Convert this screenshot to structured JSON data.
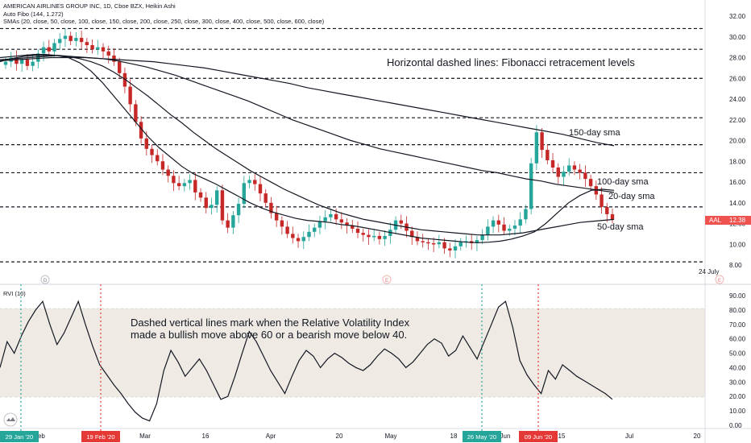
{
  "header": {
    "title_line": "AMERICAN AIRLINES GROUP INC, 1D, Cboe BZX, Heikin Ashi",
    "fib_line": "Auto Fibo (144, 1.272)",
    "sma_line": "SMAs (20, close, 50, close, 100, close, 150, close, 200, close, 250, close, 300, close, 400, close, 500, close, 600, close)",
    "rvi_label": "RVI (10)"
  },
  "ticker": {
    "symbol": "AAL",
    "price": "12.38",
    "color": "#ef5350"
  },
  "annotations": {
    "fib_note": "Horizontal dashed lines: Fibonacci retracement levels",
    "rvi_note_1": "Dashed vertical lines mark when the Relative Volatility Index",
    "rvi_note_2": "made a bullish move above 60 or a bearish move below 40.",
    "sma150": "150-day sma",
    "sma100": "100-day sma",
    "sma20": "20-day sma",
    "sma50": "50-day sma",
    "date_note": "24 July"
  },
  "event_markers": [
    "D",
    "E",
    "E"
  ],
  "x_axis": {
    "ticks": [
      "Feb",
      "Mar",
      "16",
      "Apr",
      "20",
      "May",
      "18",
      "Jun",
      "15",
      "Jul",
      "20"
    ],
    "date_badges": [
      "29 Jan '20",
      "19 Feb '20",
      "26 May '20",
      "09 Jun '20"
    ]
  },
  "colors": {
    "up": "#26a69a",
    "down": "#c62828",
    "bullish_line": "#26a69a",
    "bearish_line": "#e53935",
    "band": "#efeae4"
  },
  "chart_data": [
    {
      "type": "candlestick",
      "title": "AMERICAN AIRLINES GROUP INC, 1D, Cboe BZX, Heikin Ashi",
      "ylim": [
        7,
        33
      ],
      "yticks": [
        "8.00",
        "10.00",
        "12.00",
        "14.00",
        "16.00",
        "18.00",
        "20.00",
        "22.00",
        "24.00",
        "26.00",
        "28.00",
        "30.00",
        "32.00"
      ],
      "fib_levels": [
        8.3,
        13.6,
        16.9,
        19.6,
        22.2,
        26.0,
        28.8,
        30.8
      ],
      "closes": [
        27.6,
        28.0,
        27.4,
        27.8,
        27.2,
        27.6,
        28.4,
        29.0,
        28.6,
        29.4,
        29.8,
        30.1,
        29.6,
        29.9,
        29.5,
        29.2,
        28.8,
        29.0,
        28.6,
        28.2,
        27.6,
        26.5,
        25.2,
        23.5,
        21.8,
        20.2,
        19.2,
        18.6,
        18.0,
        17.2,
        16.6,
        15.9,
        15.6,
        15.9,
        16.2,
        15.0,
        14.5,
        13.5,
        13.8,
        15.2,
        12.3,
        11.6,
        12.8,
        13.9,
        15.9,
        16.2,
        15.8,
        14.9,
        14.0,
        13.0,
        12.3,
        11.7,
        11.0,
        10.6,
        10.3,
        10.7,
        11.2,
        11.6,
        12.2,
        12.6,
        12.9,
        12.4,
        12.1,
        11.8,
        11.5,
        11.1,
        10.9,
        10.7,
        10.8,
        10.5,
        10.8,
        11.4,
        12.3,
        12.0,
        11.3,
        10.7,
        10.3,
        10.2,
        10.1,
        10.0,
        10.2,
        9.6,
        9.4,
        9.8,
        10.2,
        10.3,
        10.1,
        10.4,
        10.9,
        11.7,
        12.3,
        11.9,
        11.3,
        11.5,
        11.8,
        12.4,
        13.4,
        17.8,
        20.8,
        19.1,
        18.1,
        17.4,
        16.5,
        17.0,
        17.6,
        17.2,
        16.9,
        16.3,
        15.6,
        14.8,
        13.6,
        12.9,
        12.4
      ],
      "sma20": [
        28.0,
        28.1,
        28.2,
        28.3,
        28.3,
        28.2,
        28.0,
        27.5,
        26.7,
        25.6,
        24.3,
        23.0,
        21.7,
        20.4,
        19.3,
        18.4,
        17.5,
        16.8,
        16.3,
        15.8,
        15.2,
        14.6,
        14.0,
        13.5,
        13.1,
        12.8,
        12.5,
        12.3,
        12.2,
        12.1,
        11.9,
        11.8,
        11.6,
        11.4,
        11.2,
        11.0,
        10.8,
        10.6,
        10.5,
        10.4,
        10.3,
        10.2,
        10.15,
        10.2,
        10.3,
        10.5,
        10.8,
        11.2,
        12.0,
        13.0,
        14.0,
        14.7,
        15.2,
        15.3,
        15.2
      ],
      "sma50": [
        27.6,
        27.9,
        28.1,
        28.2,
        28.2,
        28.2,
        28.1,
        27.9,
        27.6,
        27.2,
        26.6,
        25.9,
        25.1,
        24.3,
        23.4,
        22.5,
        21.7,
        20.8,
        20.0,
        19.2,
        18.5,
        17.8,
        17.1,
        16.5,
        15.9,
        15.3,
        14.8,
        14.3,
        13.8,
        13.4,
        13.0,
        12.7,
        12.4,
        12.2,
        12.0,
        11.8,
        11.6,
        11.4,
        11.3,
        11.2,
        11.1,
        11.0,
        10.9,
        10.9,
        10.9,
        11.0,
        11.1,
        11.3,
        11.5,
        11.7,
        11.9,
        12.1,
        12.2,
        12.3,
        12.4
      ],
      "sma100": [
        27.8,
        27.9,
        28.0,
        28.1,
        28.2,
        28.1,
        28.0,
        27.9,
        27.7,
        27.4,
        27.1,
        26.7,
        26.3,
        25.8,
        25.3,
        24.8,
        24.3,
        23.8,
        23.2,
        22.6,
        22.0,
        21.5,
        21.0,
        20.5,
        20.0,
        19.6,
        19.2,
        18.9,
        18.6,
        18.3,
        18.0,
        17.7,
        17.4,
        17.1,
        16.9,
        16.6,
        16.3,
        16.1,
        15.8,
        15.6,
        15.4,
        15.2,
        15.0
      ],
      "sma150": [
        27.7,
        27.8,
        27.9,
        28.0,
        28.0,
        28.0,
        27.9,
        27.8,
        27.7,
        27.6,
        27.4,
        27.2,
        27.0,
        26.7,
        26.4,
        26.1,
        25.8,
        25.5,
        25.1,
        24.8,
        24.5,
        24.2,
        23.9,
        23.6,
        23.3,
        23.0,
        22.7,
        22.4,
        22.1,
        21.8,
        21.5,
        21.2,
        20.9,
        20.6,
        20.2,
        19.8,
        19.5
      ]
    },
    {
      "type": "line",
      "title": "RVI (10)",
      "ylim": [
        -5,
        93
      ],
      "yticks": [
        "0.00",
        "10.00",
        "20.00",
        "30.00",
        "40.00",
        "50.00",
        "60.00",
        "70.00",
        "80.00",
        "90.00"
      ],
      "band": [
        20,
        80
      ],
      "values": [
        40,
        58,
        50,
        62,
        72,
        80,
        86,
        70,
        56,
        64,
        75,
        86,
        70,
        55,
        42,
        35,
        28,
        22,
        15,
        9,
        5,
        3,
        15,
        38,
        52,
        44,
        34,
        40,
        46,
        38,
        28,
        18,
        20,
        34,
        50,
        65,
        58,
        48,
        38,
        30,
        22,
        34,
        45,
        52,
        48,
        40,
        46,
        50,
        47,
        43,
        40,
        38,
        42,
        48,
        53,
        50,
        46,
        40,
        44,
        50,
        56,
        60,
        57,
        48,
        52,
        62,
        54,
        46,
        58,
        70,
        82,
        86,
        68,
        45,
        35,
        28,
        22,
        38,
        32,
        42,
        38,
        34,
        31,
        28,
        25,
        22,
        18
      ]
    }
  ]
}
